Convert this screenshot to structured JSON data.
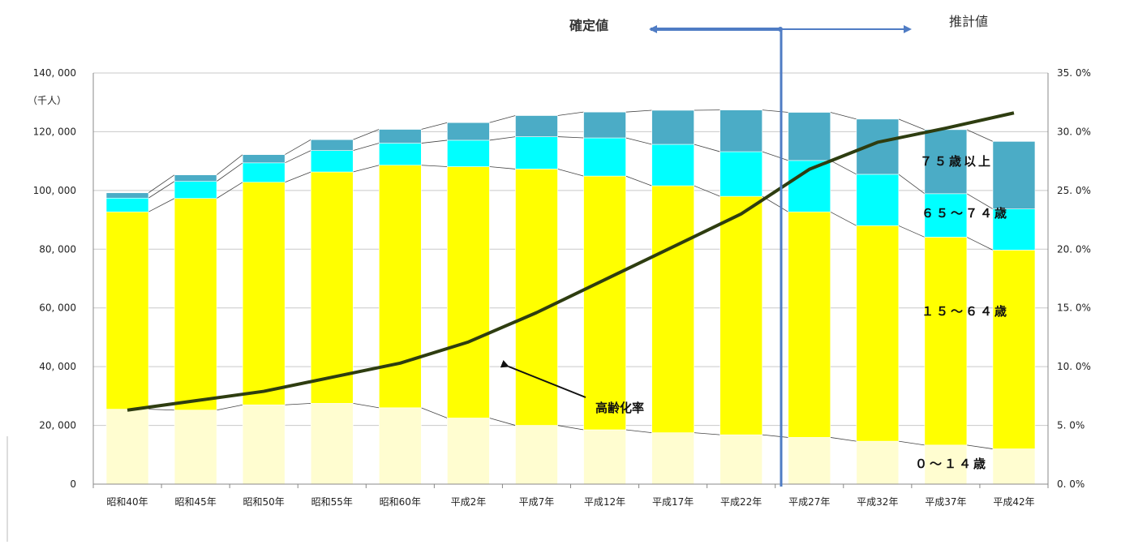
{
  "chart_data": {
    "type": "bar",
    "stacked": true,
    "categories": [
      "昭和40年",
      "昭和45年",
      "昭和50年",
      "昭和55年",
      "昭和60年",
      "平成2年",
      "平成7年",
      "平成12年",
      "平成17年",
      "平成22年",
      "平成27年",
      "平成32年",
      "平成37年",
      "平成42年"
    ],
    "series": [
      {
        "name": "0～14歳",
        "color": "#FFFDD0",
        "values": [
          25500,
          25200,
          27000,
          27500,
          26000,
          22500,
          20000,
          18500,
          17500,
          16800,
          15900,
          14600,
          13300,
          12000
        ]
      },
      {
        "name": "15～64歳",
        "color": "#FFFF00",
        "values": [
          67200,
          72100,
          75800,
          78800,
          82600,
          85600,
          87300,
          86400,
          84100,
          81200,
          76800,
          73400,
          70800,
          67700
        ]
      },
      {
        "name": "65～74歳",
        "color": "#00FFFF",
        "values": [
          4700,
          5800,
          6600,
          7300,
          7500,
          9000,
          11000,
          13000,
          14100,
          15200,
          17500,
          17500,
          14800,
          14000
        ]
      },
      {
        "name": "75歳以上",
        "color": "#4BACC6",
        "values": [
          1800,
          2200,
          2800,
          3700,
          4700,
          6000,
          7200,
          8800,
          11600,
          14200,
          16400,
          18800,
          21800,
          23000
        ]
      }
    ],
    "line": {
      "name": "高齢化率",
      "color": "#2E3D10",
      "axis": "right",
      "values": [
        6.3,
        7.1,
        7.9,
        9.1,
        10.3,
        12.1,
        14.6,
        17.4,
        20.2,
        23.0,
        26.8,
        29.1,
        30.3,
        31.6
      ]
    },
    "y_left": {
      "min": 0,
      "max": 140000,
      "ticks": [
        "0",
        "20, 000",
        "40, 000",
        "60, 000",
        "80, 000",
        "100, 000",
        "120, 000",
        "140, 000"
      ],
      "unit_label": "（千人）"
    },
    "y_right": {
      "min": 0,
      "max": 35,
      "ticks": [
        "0. 0%",
        "5. 0%",
        "10. 0%",
        "15. 0%",
        "20. 0%",
        "25. 0%",
        "30. 0%",
        "35. 0%"
      ]
    },
    "grid": true,
    "segment_labels": {
      "s75": "７５歳以上",
      "s65": "６５～７４歳",
      "s15": "１５～６４歳",
      "s0": "０～１４歳"
    },
    "annotation": "高齢化率",
    "divider": {
      "left_label": "確定値",
      "right_label": "推計値",
      "after_category": "平成22年"
    }
  }
}
